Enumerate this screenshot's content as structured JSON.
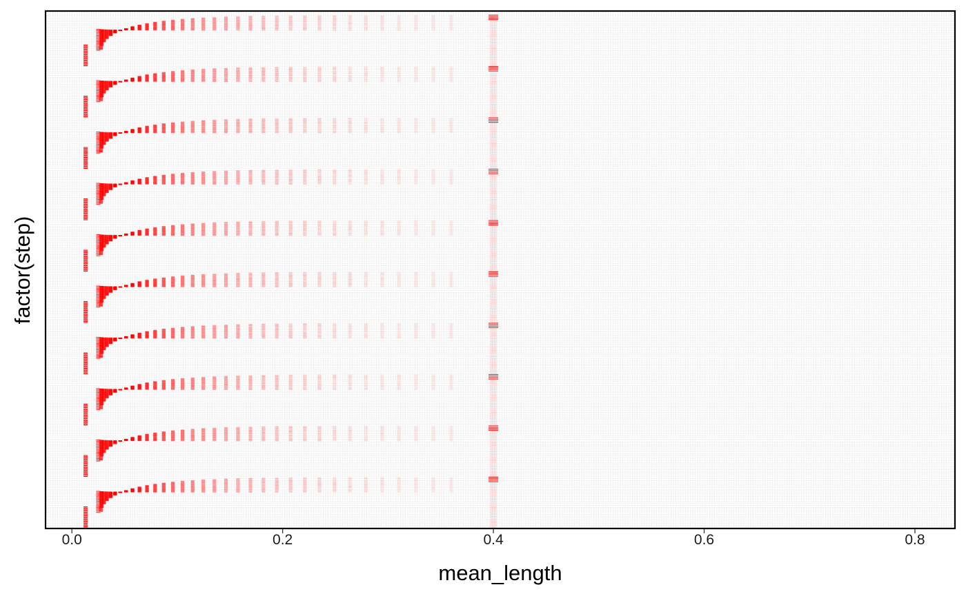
{
  "chart_data": {
    "type": "scatter",
    "title": "",
    "xlabel": "mean_length",
    "ylabel": "factor(step)",
    "x_ticks": [
      "0.0",
      "0.2",
      "0.4",
      "0.6",
      "0.8"
    ],
    "xlim": [
      -0.025,
      0.838
    ],
    "y_tick_labels_shown": false,
    "grid": "dense light gray minor gridlines",
    "legend": "none",
    "point_color": "#ff0000",
    "point_shape": "dash",
    "panel_border": true,
    "series": [
      {
        "pattern_repeats": 10,
        "x_start_column": 0.013,
        "x_second_column": 0.025,
        "x_curve_end": 0.36,
        "x_boundary_column": 0.4
      }
    ]
  }
}
